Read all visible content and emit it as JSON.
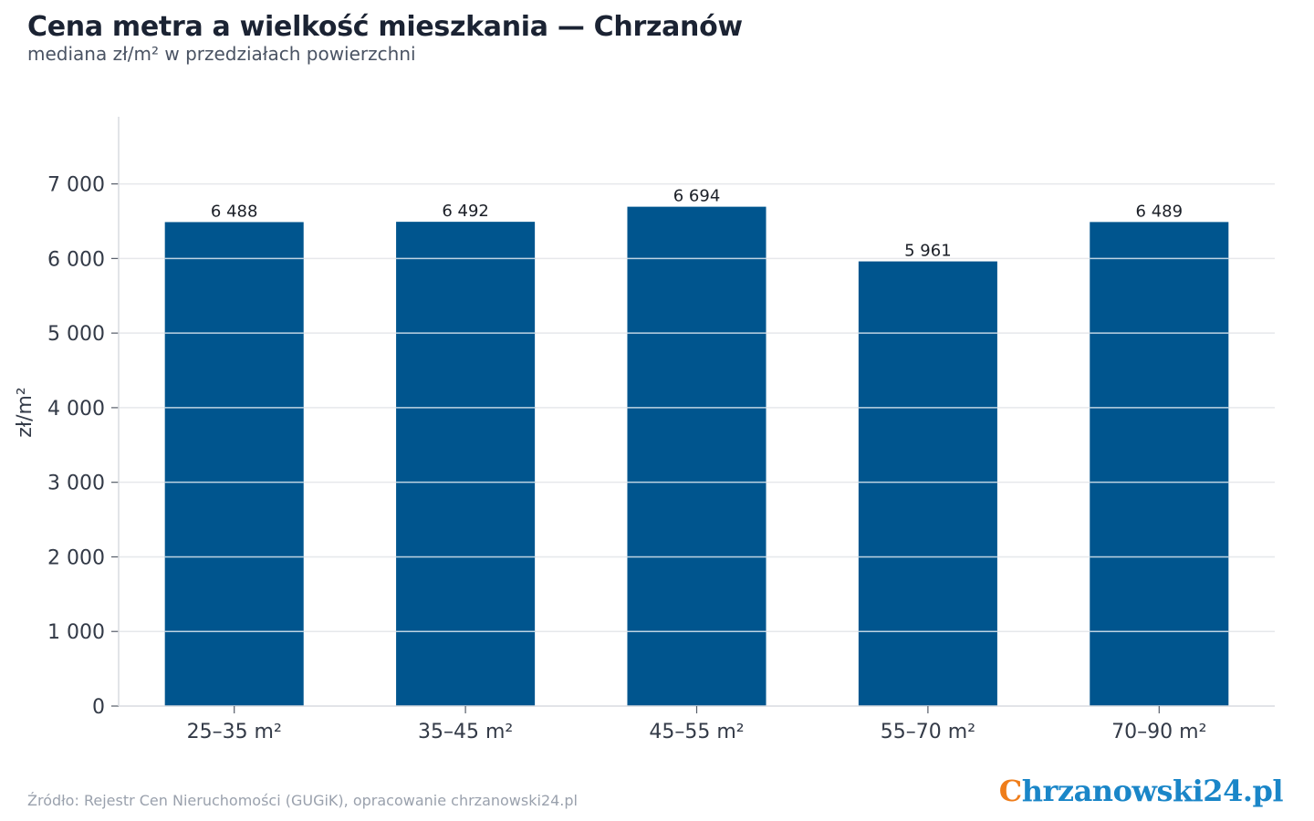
{
  "header": {
    "title": "Cena metra a wielkość mieszkania — Chrzanów",
    "subtitle": "mediana zł/m² w przedziałach powierzchni"
  },
  "footer": {
    "source": "Źródło: Rejestr Cen Nieruchomości (GUGiK), opracowanie chrzanowski24.pl",
    "logo_first_letter": "C",
    "logo_rest": "hrzanowski24.pl"
  },
  "colors": {
    "bar": "#00558e",
    "grid": "#e6e8eb",
    "logo_orange": "#ef7d1a",
    "logo_blue": "#1a86c8"
  },
  "chart_data": {
    "type": "bar",
    "title": "Cena metra a wielkość mieszkania — Chrzanów",
    "subtitle": "mediana zł/m² w przedziałach powierzchni",
    "xlabel": "",
    "ylabel": "zł/m²",
    "categories": [
      "25–35 m²",
      "35–45 m²",
      "45–55 m²",
      "55–70 m²",
      "70–90 m²"
    ],
    "values": [
      6488,
      6492,
      6694,
      5961,
      6489
    ],
    "value_labels": [
      "6 488",
      "6 492",
      "6 694",
      "5 961",
      "6 489"
    ],
    "ylim": [
      0,
      7900
    ],
    "yticks": [
      0,
      1000,
      2000,
      3000,
      4000,
      5000,
      6000,
      7000
    ],
    "ytick_labels": [
      "0",
      "1 000",
      "2 000",
      "3 000",
      "4 000",
      "5 000",
      "6 000",
      "7 000"
    ],
    "grid": true,
    "legend": "none"
  }
}
